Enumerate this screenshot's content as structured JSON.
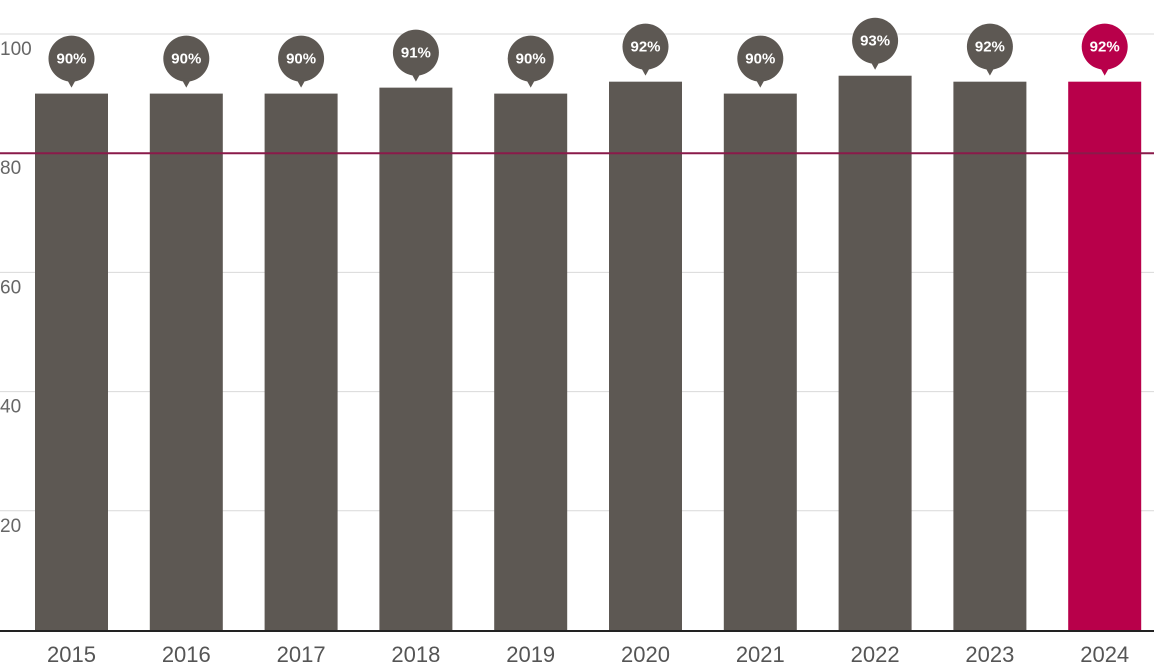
{
  "chart_data": {
    "type": "bar",
    "categories": [
      "2015",
      "2016",
      "2017",
      "2018",
      "2019",
      "2020",
      "2021",
      "2022",
      "2023",
      "2024"
    ],
    "values": [
      90,
      90,
      90,
      91,
      90,
      92,
      90,
      93,
      92,
      92
    ],
    "data_labels": [
      "90%",
      "90%",
      "90%",
      "91%",
      "90%",
      "92%",
      "90%",
      "93%",
      "92%",
      "92%"
    ],
    "y_ticks": [
      20,
      40,
      60,
      80,
      100
    ],
    "y_tick_labels": [
      "20",
      "40",
      "60",
      "80",
      "100"
    ],
    "ylim": [
      0,
      100
    ],
    "reference_line": 80,
    "highlight_category": "2024",
    "grid": true,
    "colors": {
      "bar": "#5d5853",
      "highlight": "#b8004a",
      "reference_line": "#8a1a4a",
      "grid": "#d9d9d9",
      "axis": "#222222"
    }
  }
}
